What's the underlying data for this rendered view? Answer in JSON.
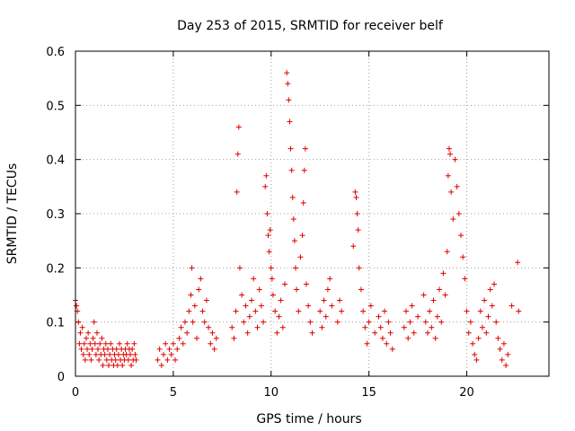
{
  "chart_data": {
    "type": "scatter",
    "title": "Day 253 of 2015, SRMTID for receiver belf",
    "xlabel": "GPS time / hours",
    "ylabel": "SRMTID / TECUs",
    "xlim": [
      0,
      24.2
    ],
    "ylim": [
      0,
      0.6
    ],
    "xticks": [
      0,
      5,
      10,
      15,
      20
    ],
    "yticks": [
      0,
      0.1,
      0.2,
      0.3,
      0.4,
      0.5,
      0.6
    ],
    "ytick_labels": [
      "0",
      "0.1",
      "0.2",
      "0.3",
      "0.4",
      "0.5",
      "0.6"
    ],
    "grid": true,
    "marker": "+",
    "color": "#e00000",
    "series": [
      {
        "name": "SRMTID",
        "points": [
          [
            0.0,
            0.14
          ],
          [
            0.05,
            0.13
          ],
          [
            0.1,
            0.12
          ],
          [
            0.15,
            0.1
          ],
          [
            0.2,
            0.06
          ],
          [
            0.25,
            0.08
          ],
          [
            0.3,
            0.05
          ],
          [
            0.35,
            0.09
          ],
          [
            0.4,
            0.04
          ],
          [
            0.45,
            0.06
          ],
          [
            0.5,
            0.03
          ],
          [
            0.55,
            0.07
          ],
          [
            0.6,
            0.05
          ],
          [
            0.65,
            0.08
          ],
          [
            0.7,
            0.04
          ],
          [
            0.75,
            0.06
          ],
          [
            0.8,
            0.03
          ],
          [
            0.85,
            0.05
          ],
          [
            0.9,
            0.07
          ],
          [
            0.95,
            0.1
          ],
          [
            1.0,
            0.06
          ],
          [
            1.05,
            0.04
          ],
          [
            1.1,
            0.08
          ],
          [
            1.15,
            0.05
          ],
          [
            1.2,
            0.03
          ],
          [
            1.25,
            0.06
          ],
          [
            1.3,
            0.04
          ],
          [
            1.35,
            0.07
          ],
          [
            1.4,
            0.02
          ],
          [
            1.45,
            0.05
          ],
          [
            1.5,
            0.04
          ],
          [
            1.55,
            0.06
          ],
          [
            1.6,
            0.03
          ],
          [
            1.65,
            0.05
          ],
          [
            1.7,
            0.02
          ],
          [
            1.75,
            0.04
          ],
          [
            1.8,
            0.06
          ],
          [
            1.85,
            0.03
          ],
          [
            1.9,
            0.05
          ],
          [
            1.95,
            0.02
          ],
          [
            2.0,
            0.04
          ],
          [
            2.05,
            0.03
          ],
          [
            2.1,
            0.05
          ],
          [
            2.15,
            0.02
          ],
          [
            2.2,
            0.04
          ],
          [
            2.25,
            0.06
          ],
          [
            2.3,
            0.03
          ],
          [
            2.35,
            0.05
          ],
          [
            2.4,
            0.02
          ],
          [
            2.45,
            0.04
          ],
          [
            2.5,
            0.03
          ],
          [
            2.55,
            0.05
          ],
          [
            2.6,
            0.04
          ],
          [
            2.65,
            0.06
          ],
          [
            2.7,
            0.03
          ],
          [
            2.75,
            0.05
          ],
          [
            2.8,
            0.04
          ],
          [
            2.85,
            0.02
          ],
          [
            2.9,
            0.05
          ],
          [
            2.95,
            0.03
          ],
          [
            3.0,
            0.06
          ],
          [
            3.05,
            0.04
          ],
          [
            3.1,
            0.03
          ],
          [
            4.2,
            0.03
          ],
          [
            4.3,
            0.05
          ],
          [
            4.4,
            0.02
          ],
          [
            4.5,
            0.04
          ],
          [
            4.6,
            0.06
          ],
          [
            4.7,
            0.03
          ],
          [
            4.8,
            0.05
          ],
          [
            4.9,
            0.04
          ],
          [
            5.0,
            0.06
          ],
          [
            5.1,
            0.03
          ],
          [
            5.2,
            0.05
          ],
          [
            5.3,
            0.07
          ],
          [
            5.4,
            0.09
          ],
          [
            5.5,
            0.06
          ],
          [
            5.6,
            0.1
          ],
          [
            5.7,
            0.08
          ],
          [
            5.8,
            0.12
          ],
          [
            5.9,
            0.15
          ],
          [
            5.95,
            0.2
          ],
          [
            6.0,
            0.1
          ],
          [
            6.1,
            0.13
          ],
          [
            6.2,
            0.07
          ],
          [
            6.3,
            0.16
          ],
          [
            6.4,
            0.18
          ],
          [
            6.5,
            0.12
          ],
          [
            6.6,
            0.1
          ],
          [
            6.7,
            0.14
          ],
          [
            6.8,
            0.09
          ],
          [
            6.9,
            0.06
          ],
          [
            7.0,
            0.08
          ],
          [
            7.1,
            0.05
          ],
          [
            7.2,
            0.07
          ],
          [
            8.0,
            0.09
          ],
          [
            8.1,
            0.07
          ],
          [
            8.2,
            0.12
          ],
          [
            8.25,
            0.34
          ],
          [
            8.3,
            0.41
          ],
          [
            8.35,
            0.46
          ],
          [
            8.4,
            0.2
          ],
          [
            8.5,
            0.15
          ],
          [
            8.6,
            0.1
          ],
          [
            8.7,
            0.13
          ],
          [
            8.8,
            0.08
          ],
          [
            8.9,
            0.11
          ],
          [
            9.0,
            0.14
          ],
          [
            9.1,
            0.18
          ],
          [
            9.2,
            0.12
          ],
          [
            9.3,
            0.09
          ],
          [
            9.4,
            0.16
          ],
          [
            9.5,
            0.13
          ],
          [
            9.6,
            0.1
          ],
          [
            9.7,
            0.35
          ],
          [
            9.75,
            0.37
          ],
          [
            9.8,
            0.3
          ],
          [
            9.85,
            0.26
          ],
          [
            9.9,
            0.23
          ],
          [
            9.95,
            0.27
          ],
          [
            10.0,
            0.2
          ],
          [
            10.05,
            0.18
          ],
          [
            10.1,
            0.15
          ],
          [
            10.2,
            0.12
          ],
          [
            10.3,
            0.08
          ],
          [
            10.4,
            0.11
          ],
          [
            10.5,
            0.14
          ],
          [
            10.6,
            0.09
          ],
          [
            10.7,
            0.17
          ],
          [
            10.8,
            0.56
          ],
          [
            10.85,
            0.54
          ],
          [
            10.9,
            0.51
          ],
          [
            10.95,
            0.47
          ],
          [
            11.0,
            0.42
          ],
          [
            11.05,
            0.38
          ],
          [
            11.1,
            0.33
          ],
          [
            11.15,
            0.29
          ],
          [
            11.2,
            0.25
          ],
          [
            11.25,
            0.2
          ],
          [
            11.3,
            0.16
          ],
          [
            11.4,
            0.12
          ],
          [
            11.5,
            0.22
          ],
          [
            11.6,
            0.26
          ],
          [
            11.65,
            0.32
          ],
          [
            11.7,
            0.38
          ],
          [
            11.75,
            0.42
          ],
          [
            11.8,
            0.17
          ],
          [
            11.9,
            0.13
          ],
          [
            12.0,
            0.1
          ],
          [
            12.1,
            0.08
          ],
          [
            12.5,
            0.12
          ],
          [
            12.6,
            0.09
          ],
          [
            12.7,
            0.14
          ],
          [
            12.8,
            0.11
          ],
          [
            12.9,
            0.16
          ],
          [
            13.0,
            0.18
          ],
          [
            13.1,
            0.13
          ],
          [
            13.4,
            0.1
          ],
          [
            13.5,
            0.14
          ],
          [
            13.6,
            0.12
          ],
          [
            14.2,
            0.24
          ],
          [
            14.3,
            0.34
          ],
          [
            14.35,
            0.33
          ],
          [
            14.4,
            0.3
          ],
          [
            14.45,
            0.27
          ],
          [
            14.5,
            0.2
          ],
          [
            14.6,
            0.16
          ],
          [
            14.7,
            0.12
          ],
          [
            14.8,
            0.09
          ],
          [
            14.9,
            0.06
          ],
          [
            15.0,
            0.1
          ],
          [
            15.1,
            0.13
          ],
          [
            15.3,
            0.08
          ],
          [
            15.5,
            0.11
          ],
          [
            15.6,
            0.09
          ],
          [
            15.7,
            0.07
          ],
          [
            15.8,
            0.12
          ],
          [
            15.9,
            0.06
          ],
          [
            16.0,
            0.1
          ],
          [
            16.1,
            0.08
          ],
          [
            16.2,
            0.05
          ],
          [
            16.8,
            0.09
          ],
          [
            16.9,
            0.12
          ],
          [
            17.0,
            0.07
          ],
          [
            17.1,
            0.1
          ],
          [
            17.2,
            0.13
          ],
          [
            17.3,
            0.08
          ],
          [
            17.5,
            0.11
          ],
          [
            17.8,
            0.15
          ],
          [
            17.9,
            0.1
          ],
          [
            18.0,
            0.08
          ],
          [
            18.1,
            0.12
          ],
          [
            18.2,
            0.09
          ],
          [
            18.3,
            0.14
          ],
          [
            18.4,
            0.07
          ],
          [
            18.5,
            0.11
          ],
          [
            18.6,
            0.16
          ],
          [
            18.7,
            0.1
          ],
          [
            18.8,
            0.19
          ],
          [
            18.9,
            0.15
          ],
          [
            19.0,
            0.23
          ],
          [
            19.05,
            0.37
          ],
          [
            19.1,
            0.42
          ],
          [
            19.15,
            0.41
          ],
          [
            19.2,
            0.34
          ],
          [
            19.3,
            0.29
          ],
          [
            19.4,
            0.4
          ],
          [
            19.5,
            0.35
          ],
          [
            19.6,
            0.3
          ],
          [
            19.7,
            0.26
          ],
          [
            19.8,
            0.22
          ],
          [
            19.9,
            0.18
          ],
          [
            20.0,
            0.12
          ],
          [
            20.1,
            0.08
          ],
          [
            20.2,
            0.1
          ],
          [
            20.3,
            0.06
          ],
          [
            20.4,
            0.04
          ],
          [
            20.5,
            0.03
          ],
          [
            20.6,
            0.07
          ],
          [
            20.7,
            0.12
          ],
          [
            20.8,
            0.09
          ],
          [
            20.9,
            0.14
          ],
          [
            21.0,
            0.08
          ],
          [
            21.1,
            0.11
          ],
          [
            21.2,
            0.16
          ],
          [
            21.3,
            0.13
          ],
          [
            21.4,
            0.17
          ],
          [
            21.5,
            0.1
          ],
          [
            21.6,
            0.07
          ],
          [
            21.7,
            0.05
          ],
          [
            21.8,
            0.03
          ],
          [
            21.9,
            0.06
          ],
          [
            22.0,
            0.02
          ],
          [
            22.1,
            0.04
          ],
          [
            22.3,
            0.13
          ],
          [
            22.6,
            0.21
          ],
          [
            22.65,
            0.12
          ]
        ]
      }
    ]
  }
}
